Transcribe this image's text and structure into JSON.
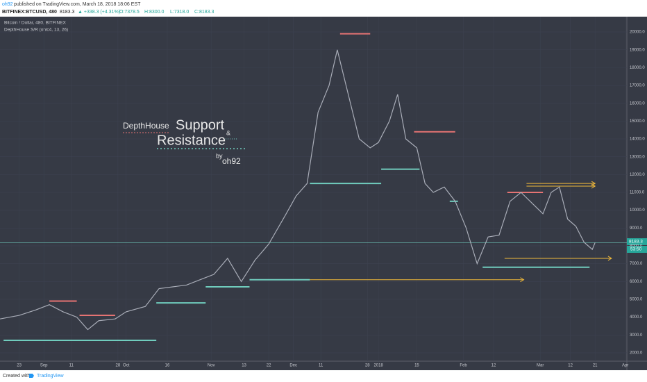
{
  "header": {
    "author": "oh92",
    "published": "published on TradingView.com, March 18, 2018 18:06 EST",
    "symbol": "BITFINEX:BTCUSD, 480",
    "last": "8183.3",
    "change": "▲ +338.3 (+4.31%)",
    "open": "O:7378.5",
    "high": "H:8300.0",
    "low": "L:7318.0",
    "close": "C:8183.3"
  },
  "legend": {
    "series_title": "Bitcoin / Dollar, 480, BITFINEX",
    "indicator": "DepthHouse S/R (ohlc4, 13, 26)"
  },
  "overlay": {
    "brand": "DepthHouse",
    "word1": "Support",
    "amp": "&",
    "word2": "Resistance",
    "by": "by",
    "author": "oh92"
  },
  "price_tag": {
    "price": "8183.3",
    "countdown": "53:50"
  },
  "footer": {
    "created": "Created with",
    "brand": "TradingView"
  },
  "chart_data": {
    "type": "line",
    "color": "#a9adb8",
    "x": [
      -138,
      -131,
      -125,
      -120,
      -115,
      -110,
      -106,
      -102,
      -96,
      -92,
      -85,
      -80,
      -75,
      -70,
      -65,
      -60,
      -55,
      -50,
      -45,
      -40,
      -34,
      -30,
      -26,
      -22,
      -18,
      -15,
      -11,
      -7,
      -3,
      0,
      4,
      7,
      10,
      14,
      17,
      20,
      24,
      28,
      32,
      36,
      40,
      44,
      48,
      52,
      56,
      60,
      63,
      66,
      69,
      72,
      75,
      78,
      79
    ],
    "values": [
      3900,
      4100,
      4400,
      4700,
      4300,
      4000,
      3300,
      3800,
      3900,
      4300,
      4600,
      5600,
      5700,
      5800,
      6100,
      6400,
      7300,
      6000,
      7200,
      8100,
      9700,
      10800,
      11500,
      15500,
      17000,
      19000,
      16500,
      14000,
      13500,
      13800,
      15000,
      16500,
      14000,
      13500,
      11500,
      11000,
      11300,
      10500,
      9000,
      7000,
      8500,
      8600,
      10500,
      11000,
      10400,
      9800,
      11000,
      11300,
      9500,
      9100,
      8200,
      7800,
      8183
    ],
    "current_price": 8183.3,
    "support_lines": {
      "color": "#70ccbd",
      "lines": [
        {
          "x": [
            -136.7,
            -81
          ],
          "y": 2700
        },
        {
          "x": [
            -81,
            -63
          ],
          "y": 4800
        },
        {
          "x": [
            -63,
            -47
          ],
          "y": 5700
        },
        {
          "x": [
            -47,
            -25
          ],
          "y": 6100
        },
        {
          "x": [
            -25,
            1
          ],
          "y": 11500
        },
        {
          "x": [
            1,
            15
          ],
          "y": 12300
        },
        {
          "x": [
            26,
            29
          ],
          "y": 10500
        },
        {
          "x": [
            38,
            77
          ],
          "y": 6800
        }
      ]
    },
    "resistance_lines": {
      "color": "#e57373",
      "lines": [
        {
          "x": [
            -120,
            -110
          ],
          "y": 4900
        },
        {
          "x": [
            -109,
            -96
          ],
          "y": 4100
        },
        {
          "x": [
            -14,
            -3
          ],
          "y": 19900
        },
        {
          "x": [
            13,
            28
          ],
          "y": 14400
        },
        {
          "x": [
            47,
            60
          ],
          "y": 11000
        }
      ]
    },
    "arrows": {
      "color": "#f0b93a",
      "lines": [
        {
          "x": [
            -25,
            53
          ],
          "y": 6100
        },
        {
          "x": [
            46,
            85
          ],
          "y": 7300
        },
        {
          "x": [
            54,
            79
          ],
          "y": 11500
        },
        {
          "x": [
            54,
            79
          ],
          "y": 11350
        }
      ]
    },
    "xlim": [
      -138,
      90.6
    ],
    "ylim": [
      1530,
      20860
    ],
    "xticks": [
      {
        "value": -131,
        "label": "23"
      },
      {
        "value": -122,
        "label": "Sep"
      },
      {
        "value": -112,
        "label": "11"
      },
      {
        "value": -95,
        "label": "28"
      },
      {
        "value": -92,
        "label": "Oct"
      },
      {
        "value": -77,
        "label": "16"
      },
      {
        "value": -61,
        "label": "Nov"
      },
      {
        "value": -49,
        "label": "13"
      },
      {
        "value": -40,
        "label": "22"
      },
      {
        "value": -31,
        "label": "Dec"
      },
      {
        "value": -21,
        "label": "11"
      },
      {
        "value": -4,
        "label": "28"
      },
      {
        "value": 0,
        "label": "2018"
      },
      {
        "value": 14,
        "label": "15"
      },
      {
        "value": 31,
        "label": "Feb"
      },
      {
        "value": 42,
        "label": "12"
      },
      {
        "value": 59,
        "label": "Mar"
      },
      {
        "value": 70,
        "label": "12"
      },
      {
        "value": 79,
        "label": "21"
      },
      {
        "value": 90,
        "label": "Apr"
      }
    ],
    "yticks": [
      {
        "value": 2000,
        "label": "2000.0"
      },
      {
        "value": 3000,
        "label": "3000.0"
      },
      {
        "value": 4000,
        "label": "4000.0"
      },
      {
        "value": 5000,
        "label": "5000.0"
      },
      {
        "value": 6000,
        "label": "6000.0"
      },
      {
        "value": 7000,
        "label": "7000.0"
      },
      {
        "value": 8000,
        "label": "8000.0"
      },
      {
        "value": 9000,
        "label": "9000.0"
      },
      {
        "value": 10000,
        "label": "10000.0"
      },
      {
        "value": 11000,
        "label": "11000.0"
      },
      {
        "value": 12000,
        "label": "12000.0"
      },
      {
        "value": 13000,
        "label": "13000.0"
      },
      {
        "value": 14000,
        "label": "14000.0"
      },
      {
        "value": 15000,
        "label": "15000.0"
      },
      {
        "value": 16000,
        "label": "16000.0"
      },
      {
        "value": 17000,
        "label": "17000.0"
      },
      {
        "value": 18000,
        "label": "18000.0"
      },
      {
        "value": 19000,
        "label": "19000.0"
      },
      {
        "value": 20000,
        "label": "20000.0"
      }
    ]
  }
}
